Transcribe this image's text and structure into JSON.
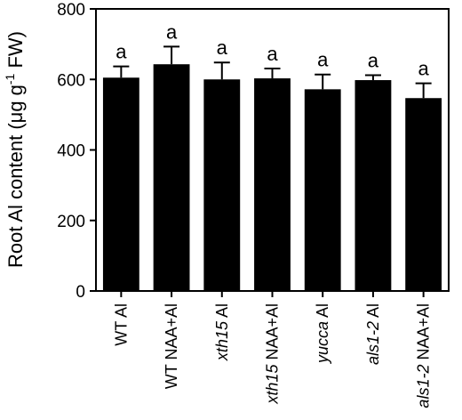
{
  "chart_data": {
    "type": "bar",
    "categories": [
      [
        {
          "text": "WT",
          "italic": false
        },
        {
          "text": " Al",
          "italic": false
        }
      ],
      [
        {
          "text": "WT NAA+Al",
          "italic": false
        }
      ],
      [
        {
          "text": "xth15",
          "italic": true
        },
        {
          "text": " Al",
          "italic": false
        }
      ],
      [
        {
          "text": "xth15",
          "italic": true
        },
        {
          "text": " NAA+Al",
          "italic": false
        }
      ],
      [
        {
          "text": "yucca",
          "italic": true
        },
        {
          "text": " Al",
          "italic": false
        }
      ],
      [
        {
          "text": "als1-2",
          "italic": true
        },
        {
          "text": " Al",
          "italic": false
        }
      ],
      [
        {
          "text": "als1-2",
          "italic": true
        },
        {
          "text": " NAA+Al",
          "italic": false
        }
      ]
    ],
    "values": [
      605,
      643,
      600,
      603,
      572,
      598,
      547
    ],
    "errors": [
      32,
      50,
      48,
      28,
      42,
      14,
      42
    ],
    "significance": [
      "a",
      "a",
      "a",
      "a",
      "a",
      "a",
      "a"
    ],
    "ylabel": {
      "prefix": "Root Al content (μg g",
      "sup": "-1",
      "suffix": " FW)"
    },
    "ylim": [
      0,
      800
    ],
    "yticks": [
      0,
      200,
      400,
      600,
      800
    ],
    "bar_color": "#000000",
    "grid": false
  }
}
